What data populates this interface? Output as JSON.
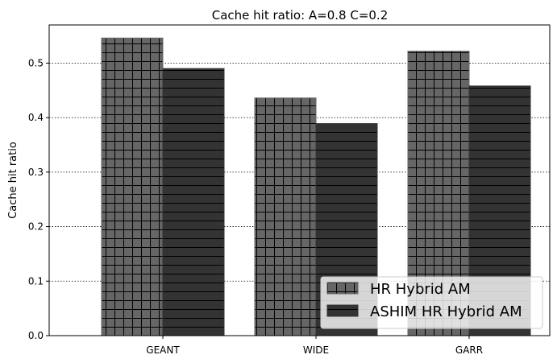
{
  "chart_data": {
    "type": "bar",
    "title": "Cache hit ratio: A=0.8 C=0.2",
    "xlabel": "",
    "ylabel": "Cache hit ratio",
    "categories": [
      "GEANT",
      "WIDE",
      "GARR"
    ],
    "series": [
      {
        "name": "HR Hybrid AM",
        "values": [
          0.546,
          0.436,
          0.522
        ],
        "color": "#666666",
        "hatch": "grid"
      },
      {
        "name": "ASHIM HR Hybrid AM",
        "values": [
          0.49,
          0.389,
          0.458
        ],
        "color": "#333333",
        "hatch": "horizontal"
      }
    ],
    "ylim": [
      0,
      0.57
    ],
    "yticks": [
      0.0,
      0.1,
      0.2,
      0.3,
      0.4,
      0.5
    ],
    "ytick_labels": [
      "0.0",
      "0.1",
      "0.2",
      "0.3",
      "0.4",
      "0.5"
    ],
    "grid": "y-dotted",
    "legend_position": "lower-right"
  }
}
